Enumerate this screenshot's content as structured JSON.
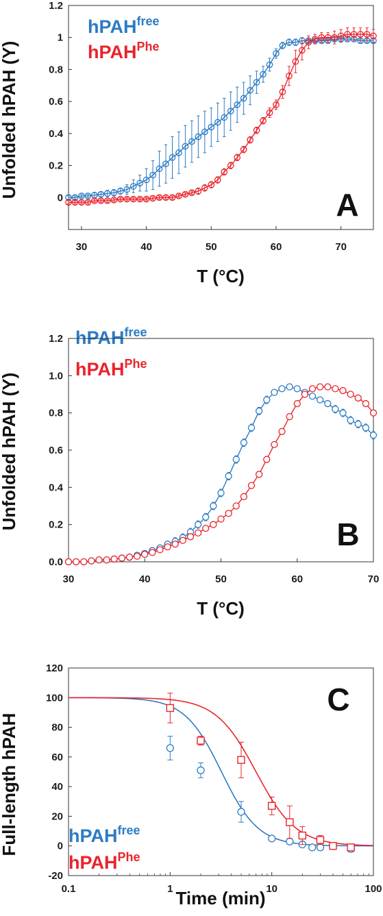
{
  "colors": {
    "free": "#2b7bc4",
    "phe": "#e8242a",
    "axis": "#333333"
  },
  "chart_data": [
    {
      "panel_letter": "A",
      "type": "scatter",
      "xlabel": "T (°C)",
      "ylabel": "Unfolded hPAH (Y)",
      "xlim": [
        28,
        75
      ],
      "ylim": [
        -0.2,
        1.2
      ],
      "xticks": [
        30,
        40,
        50,
        60,
        70
      ],
      "xtick_labels": [
        "30",
        "40",
        "50",
        "60",
        "70"
      ],
      "yticks": [
        0,
        0.2,
        0.4,
        0.6,
        0.8,
        1.0,
        1.2
      ],
      "ytick_labels": [
        "0",
        "0.2",
        "0.4",
        "0.6",
        "0.8",
        "1",
        "1.2"
      ],
      "legend_position": "top-left",
      "series": [
        {
          "name": "hPAH",
          "name_sup": "free",
          "color_key": "free",
          "marker": "circle",
          "connect": true,
          "x": [
            28,
            29,
            30,
            31,
            32,
            33,
            34,
            35,
            36,
            37,
            38,
            39,
            40,
            41,
            42,
            43,
            44,
            45,
            46,
            47,
            48,
            49,
            50,
            51,
            52,
            53,
            54,
            55,
            56,
            57,
            58,
            59,
            60,
            61,
            62,
            63,
            64,
            65,
            66,
            67,
            68,
            69,
            70,
            71,
            72,
            73,
            74,
            75
          ],
          "y": [
            0.0,
            0.0,
            0.01,
            0.01,
            0.015,
            0.02,
            0.025,
            0.03,
            0.04,
            0.05,
            0.07,
            0.09,
            0.11,
            0.14,
            0.18,
            0.21,
            0.25,
            0.28,
            0.32,
            0.35,
            0.38,
            0.41,
            0.44,
            0.47,
            0.5,
            0.54,
            0.58,
            0.62,
            0.67,
            0.72,
            0.77,
            0.83,
            0.9,
            0.95,
            0.97,
            0.97,
            0.98,
            0.98,
            0.98,
            0.98,
            0.98,
            0.99,
            0.99,
            0.99,
            0.99,
            0.98,
            0.98,
            0.98
          ],
          "err": [
            0.01,
            0.01,
            0.01,
            0.01,
            0.015,
            0.015,
            0.02,
            0.02,
            0.02,
            0.03,
            0.04,
            0.05,
            0.07,
            0.09,
            0.11,
            0.12,
            0.13,
            0.13,
            0.13,
            0.13,
            0.13,
            0.13,
            0.12,
            0.12,
            0.12,
            0.12,
            0.11,
            0.1,
            0.09,
            0.07,
            0.05,
            0.04,
            0.03,
            0.02,
            0.02,
            0.02,
            0.02,
            0.01,
            0.01,
            0.01,
            0.01,
            0.01,
            0.01,
            0.01,
            0.01,
            0.01,
            0.01,
            0.01
          ]
        },
        {
          "name": "hPAH",
          "name_sup": "Phe",
          "color_key": "phe",
          "marker": "circle",
          "connect": true,
          "x": [
            28,
            29,
            30,
            31,
            32,
            33,
            34,
            35,
            36,
            37,
            38,
            39,
            40,
            41,
            42,
            43,
            44,
            45,
            46,
            47,
            48,
            49,
            50,
            51,
            52,
            53,
            54,
            55,
            56,
            57,
            58,
            59,
            60,
            61,
            62,
            63,
            64,
            65,
            66,
            67,
            68,
            69,
            70,
            71,
            72,
            73,
            74,
            75
          ],
          "y": [
            -0.03,
            -0.03,
            -0.03,
            -0.03,
            -0.02,
            -0.02,
            -0.02,
            -0.015,
            -0.01,
            -0.01,
            -0.01,
            -0.01,
            -0.01,
            -0.005,
            0.0,
            0.0,
            0.0,
            0.01,
            0.02,
            0.03,
            0.04,
            0.06,
            0.08,
            0.11,
            0.16,
            0.2,
            0.25,
            0.3,
            0.36,
            0.42,
            0.48,
            0.53,
            0.58,
            0.66,
            0.76,
            0.85,
            0.92,
            0.97,
            0.99,
            1.0,
            1.0,
            1.0,
            1.01,
            1.02,
            1.02,
            1.02,
            1.02,
            1.01
          ],
          "err": [
            0.01,
            0.01,
            0.01,
            0.01,
            0.01,
            0.01,
            0.01,
            0.01,
            0.01,
            0.01,
            0.01,
            0.01,
            0.01,
            0.01,
            0.01,
            0.01,
            0.01,
            0.01,
            0.01,
            0.01,
            0.02,
            0.02,
            0.02,
            0.02,
            0.02,
            0.02,
            0.02,
            0.02,
            0.02,
            0.02,
            0.02,
            0.03,
            0.03,
            0.04,
            0.06,
            0.07,
            0.06,
            0.04,
            0.03,
            0.03,
            0.03,
            0.04,
            0.04,
            0.04,
            0.04,
            0.04,
            0.04,
            0.04
          ]
        }
      ]
    },
    {
      "panel_letter": "B",
      "type": "scatter",
      "xlabel": "T (°C)",
      "ylabel": "Unfolded hPAH (Y)",
      "xlim": [
        30,
        70
      ],
      "ylim": [
        0,
        1.2
      ],
      "xticks": [
        30,
        40,
        50,
        60,
        70
      ],
      "xtick_labels": [
        "30",
        "40",
        "50",
        "60",
        "70"
      ],
      "yticks": [
        0,
        0.2,
        0.4,
        0.6,
        0.8,
        1.0,
        1.2
      ],
      "ytick_labels": [
        "0.0",
        "0.2",
        "0.4",
        "0.6",
        "0.8",
        "1.0",
        "1.2"
      ],
      "legend_position": "top-left",
      "series": [
        {
          "name": "hPAH",
          "name_sup": "free",
          "color_key": "free",
          "marker": "circle",
          "x": [
            30,
            31,
            32,
            33,
            34,
            35,
            36,
            37,
            38,
            39,
            40,
            41,
            42,
            43,
            44,
            45,
            46,
            47,
            48,
            49,
            50,
            51,
            52,
            53,
            54,
            55,
            56,
            57,
            58,
            59,
            60,
            61,
            62,
            63,
            64,
            65,
            66,
            67,
            68,
            69,
            70
          ],
          "y": [
            0.0,
            0.0,
            0.0,
            0.005,
            0.01,
            0.01,
            0.015,
            0.02,
            0.025,
            0.035,
            0.045,
            0.06,
            0.075,
            0.095,
            0.11,
            0.13,
            0.16,
            0.2,
            0.24,
            0.3,
            0.37,
            0.46,
            0.55,
            0.64,
            0.72,
            0.81,
            0.87,
            0.91,
            0.93,
            0.94,
            0.93,
            0.91,
            0.89,
            0.87,
            0.85,
            0.82,
            0.8,
            0.76,
            0.74,
            0.72,
            0.68
          ],
          "err": [
            0.005,
            0.005,
            0.005,
            0.005,
            0.005,
            0.005,
            0.005,
            0.005,
            0.005,
            0.005,
            0.01,
            0.01,
            0.01,
            0.015,
            0.02,
            0.02,
            0.02,
            0.02,
            0.02,
            0.02,
            0.02,
            0.02,
            0.02,
            0.02,
            0.02,
            0.02,
            0.02,
            0.015,
            0.015,
            0.015,
            0.015,
            0.015,
            0.015,
            0.015,
            0.015,
            0.02,
            0.02,
            0.02,
            0.02,
            0.02,
            0.02
          ]
        },
        {
          "name": "hPAH",
          "name_sup": "Phe",
          "color_key": "phe",
          "marker": "circle",
          "x": [
            30,
            31,
            32,
            33,
            34,
            35,
            36,
            37,
            38,
            39,
            40,
            41,
            42,
            43,
            44,
            45,
            46,
            47,
            48,
            49,
            50,
            51,
            52,
            53,
            54,
            55,
            56,
            57,
            58,
            59,
            60,
            61,
            62,
            63,
            64,
            65,
            66,
            67,
            68,
            69,
            70
          ],
          "y": [
            0.0,
            0.0,
            0.0,
            0.005,
            0.01,
            0.01,
            0.015,
            0.02,
            0.025,
            0.03,
            0.04,
            0.05,
            0.065,
            0.08,
            0.095,
            0.115,
            0.135,
            0.155,
            0.18,
            0.2,
            0.23,
            0.26,
            0.3,
            0.35,
            0.41,
            0.47,
            0.55,
            0.63,
            0.7,
            0.78,
            0.85,
            0.9,
            0.93,
            0.94,
            0.94,
            0.93,
            0.92,
            0.9,
            0.88,
            0.85,
            0.8
          ],
          "err": [
            0.005,
            0.005,
            0.005,
            0.005,
            0.005,
            0.005,
            0.005,
            0.005,
            0.005,
            0.005,
            0.005,
            0.01,
            0.01,
            0.01,
            0.01,
            0.01,
            0.01,
            0.01,
            0.01,
            0.01,
            0.01,
            0.01,
            0.01,
            0.01,
            0.01,
            0.01,
            0.01,
            0.01,
            0.01,
            0.01,
            0.01,
            0.01,
            0.01,
            0.01,
            0.01,
            0.01,
            0.01,
            0.01,
            0.01,
            0.01,
            0.01
          ]
        }
      ]
    },
    {
      "panel_letter": "C",
      "type": "scatter",
      "xlabel": "Time (min)",
      "ylabel": "Full-length hPAH",
      "xscale": "log",
      "xlim": [
        0.1,
        100
      ],
      "ylim": [
        -20,
        120
      ],
      "xticks": [
        0.1,
        1,
        10,
        100
      ],
      "xtick_labels": [
        "0.1",
        "1",
        "10",
        "100"
      ],
      "yticks": [
        -20,
        0,
        20,
        40,
        60,
        80,
        100,
        120
      ],
      "ytick_labels": [
        "-20",
        "0",
        "20",
        "40",
        "60",
        "80",
        "100",
        "120"
      ],
      "legend_position": "bottom-left",
      "series": [
        {
          "name": "hPAH",
          "name_sup": "free",
          "color_key": "free",
          "marker": "circle",
          "x": [
            1,
            2,
            5,
            10,
            15,
            20,
            25,
            30,
            40,
            60
          ],
          "y": [
            66,
            51,
            23,
            5,
            3,
            1,
            -1,
            -1,
            0,
            -2
          ],
          "err": [
            8,
            5,
            7,
            1,
            1,
            1,
            1,
            1,
            1,
            2
          ],
          "fit": {
            "top": 100,
            "t_half": 3.2,
            "slope": 2.4
          }
        },
        {
          "name": "hPAH",
          "name_sup": "Phe",
          "color_key": "phe",
          "marker": "square",
          "x": [
            1,
            2,
            5,
            10,
            15,
            20,
            30,
            40,
            60
          ],
          "y": [
            93,
            71,
            58,
            27,
            16,
            7,
            4,
            0,
            -1
          ],
          "err": [
            10,
            3,
            12,
            6,
            11,
            6,
            3,
            2,
            2
          ],
          "fit": {
            "top": 100,
            "t_half": 7,
            "slope": 2.2
          }
        }
      ]
    }
  ]
}
